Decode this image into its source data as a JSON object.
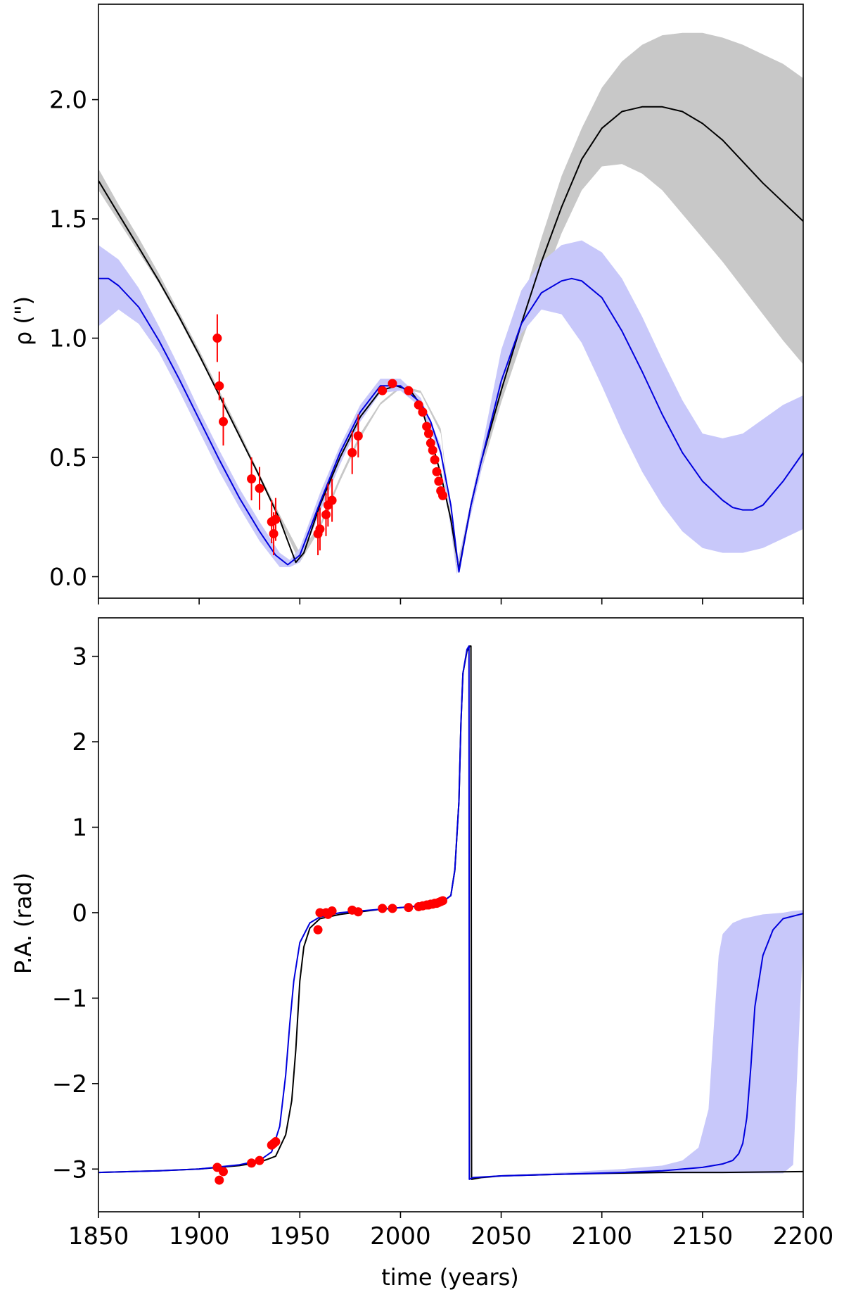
{
  "colors": {
    "model_black": "#000000",
    "model_blue": "#0000dd",
    "band_gray": "#c8c8c8",
    "band_blue": "#c8c8fa",
    "data_red": "#ff0000"
  },
  "xaxis": {
    "label": "time (years)",
    "lim": [
      1850,
      2200
    ],
    "ticks": [
      1850,
      1900,
      1950,
      2000,
      2050,
      2100,
      2150,
      2200
    ],
    "tick_labels": [
      "1850",
      "1900",
      "1950",
      "2000",
      "2050",
      "2100",
      "2150",
      "2200"
    ]
  },
  "chart_data": [
    {
      "type": "line",
      "ylabel": "ρ (\")",
      "ylim": [
        -0.09,
        2.4
      ],
      "yticks": [
        0.0,
        0.5,
        1.0,
        1.5,
        2.0
      ],
      "ytick_labels": [
        "0.0",
        "0.5",
        "1.0",
        "1.5",
        "2.0"
      ],
      "bands": [
        {
          "color": "band_gray",
          "x": [
            1850,
            1860,
            1870,
            1880,
            1890,
            1900,
            1910,
            1920,
            1930,
            1940,
            1950,
            1960,
            1970,
            1980,
            1990,
            2000,
            2010,
            2020,
            2028,
            2040,
            2050,
            2060,
            2070,
            2080,
            2090,
            2100,
            2110,
            2120,
            2130,
            2140,
            2150,
            2160,
            2170,
            2180,
            2190,
            2200
          ],
          "upper": [
            1.71,
            1.56,
            1.42,
            1.27,
            1.11,
            0.95,
            0.78,
            0.61,
            0.43,
            0.26,
            0.1,
            0.22,
            0.42,
            0.6,
            0.73,
            0.8,
            0.78,
            0.62,
            0.05,
            0.48,
            0.82,
            1.14,
            1.42,
            1.68,
            1.88,
            2.05,
            2.16,
            2.23,
            2.27,
            2.28,
            2.28,
            2.26,
            2.23,
            2.19,
            2.15,
            2.09
          ],
          "lower": [
            1.62,
            1.49,
            1.36,
            1.23,
            1.08,
            0.92,
            0.76,
            0.59,
            0.41,
            0.24,
            0.06,
            0.2,
            0.4,
            0.58,
            0.72,
            0.79,
            0.77,
            0.6,
            0.02,
            0.44,
            0.73,
            0.98,
            1.22,
            1.44,
            1.62,
            1.72,
            1.73,
            1.69,
            1.62,
            1.52,
            1.42,
            1.32,
            1.21,
            1.1,
            0.99,
            0.89
          ]
        },
        {
          "color": "band_blue",
          "x": [
            1850,
            1860,
            1870,
            1880,
            1890,
            1900,
            1910,
            1920,
            1930,
            1940,
            1945,
            1950,
            1960,
            1970,
            1980,
            1990,
            2000,
            2010,
            2020,
            2028,
            2040,
            2050,
            2060,
            2070,
            2080,
            2090,
            2100,
            2110,
            2120,
            2130,
            2140,
            2150,
            2160,
            2170,
            2180,
            2190,
            2200
          ],
          "upper": [
            1.39,
            1.33,
            1.21,
            1.05,
            0.88,
            0.7,
            0.53,
            0.37,
            0.23,
            0.1,
            0.07,
            0.12,
            0.35,
            0.55,
            0.72,
            0.83,
            0.83,
            0.75,
            0.55,
            0.04,
            0.52,
            0.95,
            1.2,
            1.32,
            1.39,
            1.41,
            1.36,
            1.25,
            1.09,
            0.91,
            0.74,
            0.6,
            0.58,
            0.6,
            0.66,
            0.72,
            0.76
          ],
          "lower": [
            1.05,
            1.12,
            1.06,
            0.94,
            0.78,
            0.61,
            0.44,
            0.29,
            0.15,
            0.04,
            0.04,
            0.06,
            0.27,
            0.47,
            0.65,
            0.77,
            0.78,
            0.71,
            0.51,
            0.01,
            0.44,
            0.8,
            1.02,
            1.12,
            1.1,
            0.98,
            0.8,
            0.61,
            0.44,
            0.3,
            0.19,
            0.12,
            0.1,
            0.1,
            0.12,
            0.16,
            0.2
          ]
        }
      ],
      "series": [
        {
          "color": "model_black",
          "x": [
            1850,
            1860,
            1870,
            1880,
            1890,
            1900,
            1910,
            1920,
            1930,
            1940,
            1944,
            1948,
            1952,
            1960,
            1970,
            1980,
            1990,
            1998,
            2005,
            2010,
            2015,
            2020,
            2025,
            2029,
            2035,
            2040,
            2050,
            2060,
            2070,
            2080,
            2090,
            2100,
            2110,
            2120,
            2130,
            2140,
            2150,
            2160,
            2170,
            2180,
            2190,
            2200
          ],
          "y": [
            1.66,
            1.52,
            1.38,
            1.24,
            1.09,
            0.93,
            0.76,
            0.59,
            0.42,
            0.24,
            0.15,
            0.06,
            0.1,
            0.3,
            0.5,
            0.67,
            0.78,
            0.8,
            0.78,
            0.72,
            0.58,
            0.43,
            0.24,
            0.03,
            0.3,
            0.48,
            0.78,
            1.06,
            1.32,
            1.55,
            1.75,
            1.88,
            1.95,
            1.97,
            1.97,
            1.95,
            1.9,
            1.83,
            1.74,
            1.65,
            1.57,
            1.49
          ]
        },
        {
          "color": "model_blue",
          "x": [
            1850,
            1855,
            1860,
            1870,
            1880,
            1890,
            1900,
            1910,
            1920,
            1930,
            1938,
            1944,
            1950,
            1960,
            1970,
            1980,
            1990,
            2000,
            2010,
            2015,
            2020,
            2025,
            2029,
            2035,
            2040,
            2050,
            2060,
            2070,
            2080,
            2085,
            2090,
            2100,
            2110,
            2120,
            2130,
            2140,
            2150,
            2160,
            2165,
            2170,
            2175,
            2180,
            2190,
            2200
          ],
          "y": [
            1.25,
            1.25,
            1.22,
            1.13,
            0.99,
            0.83,
            0.66,
            0.49,
            0.33,
            0.19,
            0.09,
            0.05,
            0.09,
            0.31,
            0.52,
            0.69,
            0.8,
            0.8,
            0.73,
            0.65,
            0.52,
            0.3,
            0.02,
            0.3,
            0.48,
            0.82,
            1.06,
            1.19,
            1.24,
            1.25,
            1.24,
            1.17,
            1.03,
            0.86,
            0.68,
            0.52,
            0.4,
            0.32,
            0.29,
            0.28,
            0.28,
            0.3,
            0.4,
            0.52
          ]
        }
      ],
      "observations": {
        "x": [
          1909,
          1910,
          1912,
          1926,
          1930,
          1936,
          1937,
          1938,
          1959,
          1960,
          1963,
          1964,
          1966,
          1976,
          1979,
          1991,
          1996,
          2004,
          2009,
          2011,
          2013,
          2014,
          2015,
          2016,
          2017,
          2018,
          2019,
          2020,
          2021
        ],
        "y": [
          1.0,
          0.8,
          0.65,
          0.41,
          0.37,
          0.23,
          0.18,
          0.24,
          0.18,
          0.2,
          0.26,
          0.3,
          0.32,
          0.52,
          0.59,
          0.78,
          0.81,
          0.78,
          0.72,
          0.69,
          0.63,
          0.6,
          0.56,
          0.53,
          0.49,
          0.44,
          0.4,
          0.36,
          0.34
        ],
        "err": [
          0.1,
          0.06,
          0.1,
          0.09,
          0.09,
          0.09,
          0.09,
          0.09,
          0.09,
          0.09,
          0.09,
          0.09,
          0.09,
          0.09,
          0.09,
          0.0,
          0.0,
          0.0,
          0.0,
          0.0,
          0.0,
          0.0,
          0.0,
          0.0,
          0.0,
          0.0,
          0.0,
          0.0,
          0.0
        ]
      }
    },
    {
      "type": "line",
      "ylabel": "P.A. (rad)",
      "ylim": [
        -3.5,
        3.45
      ],
      "yticks": [
        -3,
        -2,
        -1,
        0,
        1,
        2,
        3
      ],
      "ytick_labels": [
        "−3",
        "−2",
        "−1",
        "0",
        "1",
        "2",
        "3"
      ],
      "bands": [
        {
          "color": "band_blue",
          "x": [
            2036,
            2050,
            2080,
            2110,
            2130,
            2140,
            2148,
            2153,
            2156,
            2158,
            2160,
            2165,
            2170,
            2180,
            2190,
            2195,
            2200
          ],
          "upper": [
            -3.1,
            -3.07,
            -3.04,
            -3.0,
            -2.96,
            -2.9,
            -2.75,
            -2.3,
            -1.2,
            -0.5,
            -0.25,
            -0.12,
            -0.07,
            -0.02,
            0.0,
            0.02,
            0.03
          ],
          "lower": [
            -3.12,
            -3.09,
            -3.07,
            -3.06,
            -3.05,
            -3.05,
            -3.05,
            -3.05,
            -3.05,
            -3.05,
            -3.05,
            -3.05,
            -3.05,
            -3.05,
            -3.05,
            -2.95,
            -0.3
          ]
        }
      ],
      "series": [
        {
          "color": "model_black",
          "x": [
            1850,
            1880,
            1900,
            1920,
            1930,
            1938,
            1943,
            1946,
            1948,
            1950,
            1952,
            1955,
            1960,
            1970,
            1980,
            1990,
            2000,
            2010,
            2020,
            2025,
            2027,
            2029,
            2030,
            2031,
            2033,
            2034.4,
            2035,
            2035.3,
            2040,
            2050,
            2080,
            2100,
            2130,
            2160,
            2200
          ],
          "y": [
            -3.04,
            -3.02,
            -3.0,
            -2.96,
            -2.92,
            -2.85,
            -2.6,
            -2.2,
            -1.6,
            -0.8,
            -0.4,
            -0.18,
            -0.07,
            -0.02,
            0.01,
            0.04,
            0.06,
            0.08,
            0.11,
            0.2,
            0.5,
            1.3,
            2.2,
            2.8,
            3.06,
            3.12,
            3.12,
            -3.12,
            -3.1,
            -3.08,
            -3.06,
            -3.05,
            -3.04,
            -3.04,
            -3.03
          ]
        },
        {
          "color": "model_blue",
          "x": [
            1850,
            1880,
            1900,
            1920,
            1930,
            1936,
            1940,
            1943,
            1945,
            1947,
            1950,
            1955,
            1960,
            1970,
            1980,
            1990,
            2000,
            2010,
            2020,
            2025,
            2027,
            2029,
            2030,
            2031,
            2033,
            2034,
            2034.2,
            2036,
            2050,
            2080,
            2110,
            2130,
            2150,
            2160,
            2165,
            2168,
            2170,
            2172,
            2174,
            2176,
            2180,
            2185,
            2190,
            2200
          ],
          "y": [
            -3.04,
            -3.02,
            -3.0,
            -2.95,
            -2.9,
            -2.8,
            -2.5,
            -1.9,
            -1.3,
            -0.8,
            -0.35,
            -0.12,
            -0.05,
            0.0,
            0.02,
            0.04,
            0.06,
            0.08,
            0.11,
            0.2,
            0.5,
            1.3,
            2.2,
            2.8,
            3.08,
            3.12,
            -3.12,
            -3.1,
            -3.08,
            -3.06,
            -3.04,
            -3.02,
            -2.98,
            -2.94,
            -2.9,
            -2.82,
            -2.7,
            -2.4,
            -1.8,
            -1.1,
            -0.5,
            -0.2,
            -0.07,
            -0.01
          ]
        }
      ],
      "observations": {
        "x": [
          1909,
          1910,
          1912,
          1926,
          1930,
          1936,
          1937,
          1938,
          1959,
          1960,
          1963,
          1964,
          1966,
          1976,
          1979,
          1991,
          1996,
          2004,
          2009,
          2011,
          2013,
          2014,
          2015,
          2016,
          2017,
          2018,
          2019,
          2020,
          2021
        ],
        "y": [
          -2.98,
          -3.13,
          -3.03,
          -2.93,
          -2.9,
          -2.72,
          -2.7,
          -2.68,
          -0.2,
          0.0,
          0.0,
          -0.02,
          0.02,
          0.03,
          0.01,
          0.05,
          0.05,
          0.06,
          0.07,
          0.08,
          0.09,
          0.09,
          0.1,
          0.1,
          0.11,
          0.11,
          0.12,
          0.13,
          0.14
        ],
        "err": []
      }
    }
  ]
}
